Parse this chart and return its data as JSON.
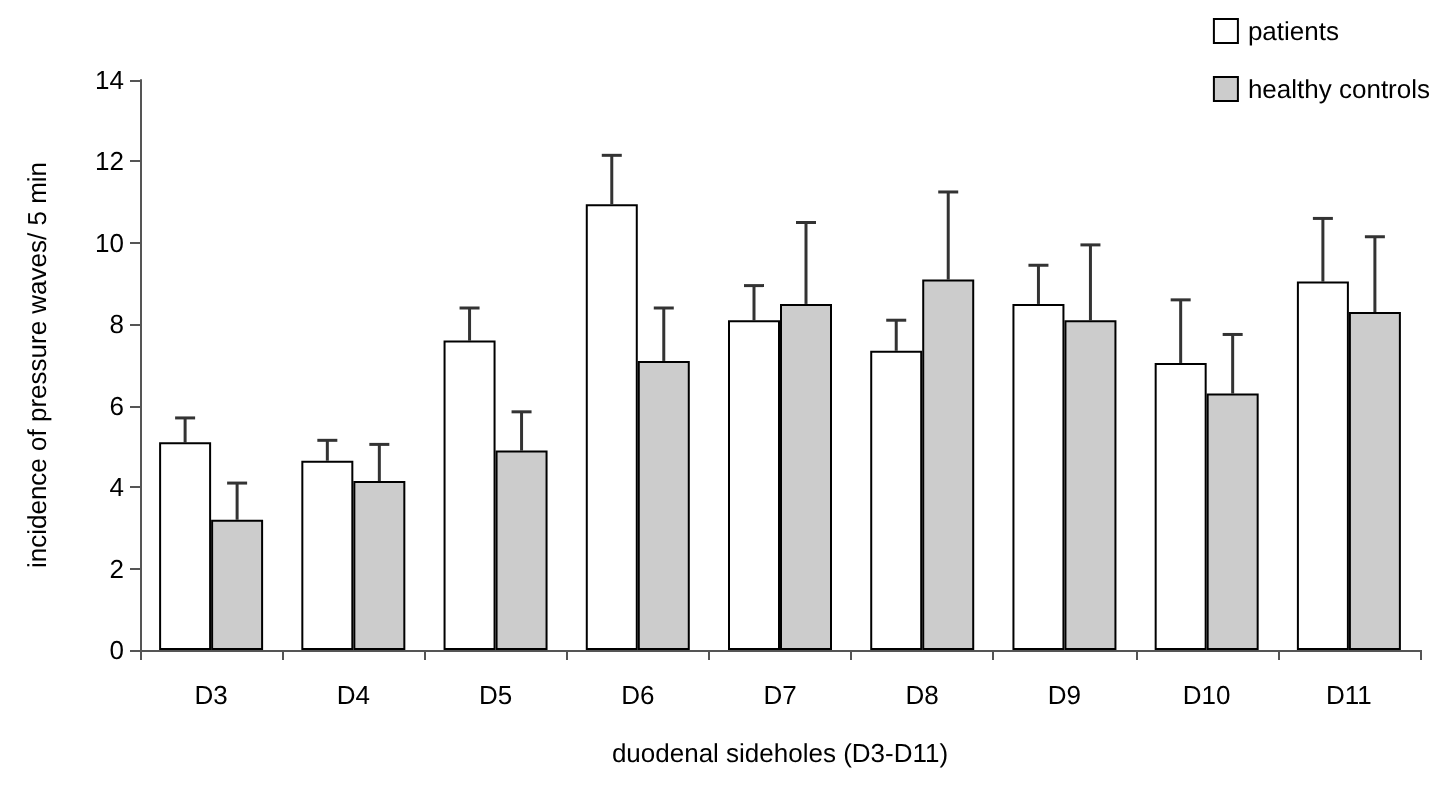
{
  "chart_data": {
    "type": "bar",
    "xlabel": "duodenal sideholes (D3-D11)",
    "ylabel": "incidence of pressure waves/ 5 min",
    "categories": [
      "D3",
      "D4",
      "D5",
      "D6",
      "D7",
      "D8",
      "D9",
      "D10",
      "D11"
    ],
    "series": [
      {
        "name": "patients",
        "color": "#ffffff",
        "values": [
          5.1,
          4.65,
          7.6,
          10.95,
          8.1,
          7.35,
          8.5,
          7.05,
          9.05
        ],
        "errors": [
          [
            5.1,
            5.7
          ],
          [
            4.65,
            5.15
          ],
          [
            7.6,
            8.4
          ],
          [
            10.95,
            12.15
          ],
          [
            8.1,
            8.95
          ],
          [
            7.35,
            8.1
          ],
          [
            8.5,
            9.45
          ],
          [
            7.05,
            8.6
          ],
          [
            9.05,
            10.6
          ]
        ]
      },
      {
        "name": "healthy controls",
        "color": "#cccccc",
        "values": [
          3.2,
          4.15,
          4.9,
          7.1,
          8.5,
          9.1,
          8.1,
          6.3,
          8.3
        ],
        "errors": [
          [
            3.2,
            4.1
          ],
          [
            4.15,
            5.05
          ],
          [
            4.9,
            5.85
          ],
          [
            7.1,
            8.4
          ],
          [
            8.5,
            10.5
          ],
          [
            9.1,
            11.25
          ],
          [
            8.1,
            9.95
          ],
          [
            6.3,
            7.75
          ],
          [
            8.3,
            10.15
          ]
        ]
      }
    ],
    "ylim": [
      0,
      14
    ],
    "yticks": [
      0,
      2,
      4,
      6,
      8,
      10,
      12,
      14
    ],
    "grid": false,
    "legend": "top right"
  }
}
